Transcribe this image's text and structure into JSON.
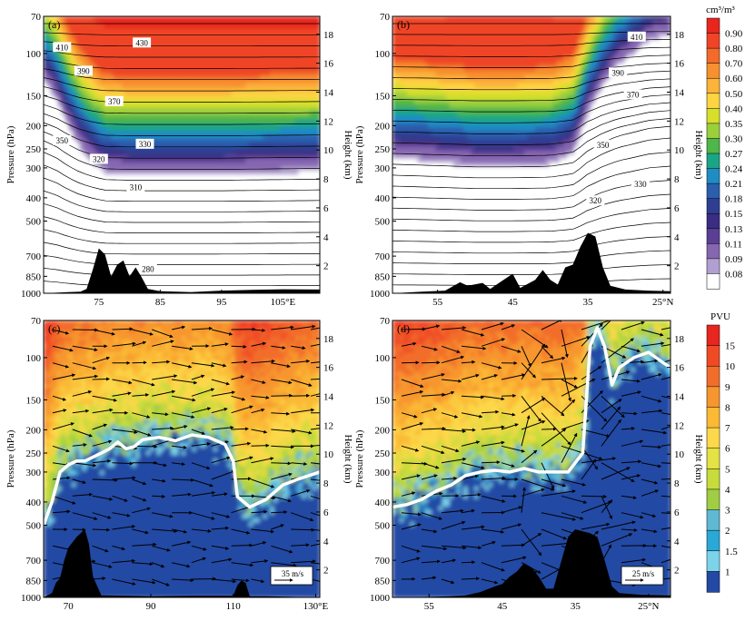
{
  "chart_data": [
    {
      "panel": "(a)",
      "type": "heatmap",
      "variable": "ozone (filled) with isentropes (contours)",
      "x": {
        "ticks": [
          75,
          85,
          95,
          105
        ],
        "labels": [
          "75",
          "85",
          "95",
          "105°E"
        ],
        "range": [
          66,
          111
        ]
      },
      "y": {
        "label": "Pressure (hPa)",
        "scale": "log",
        "ticks": [
          70,
          100,
          150,
          200,
          250,
          300,
          400,
          500,
          700,
          850,
          1000
        ],
        "range": [
          1000,
          70
        ]
      },
      "y2": {
        "label": "Height (km)",
        "ticks": [
          2,
          4,
          6,
          8,
          10,
          12,
          14,
          16,
          18
        ]
      },
      "contour_labels": [
        {
          "v": "430",
          "x": 82,
          "p": 90
        },
        {
          "v": "410",
          "x": 69,
          "p": 94
        },
        {
          "v": "390",
          "x": 72.5,
          "p": 118
        },
        {
          "v": "370",
          "x": 77.5,
          "p": 158
        },
        {
          "v": "350",
          "x": 69,
          "p": 230
        },
        {
          "v": "330",
          "x": 82.5,
          "p": 238
        },
        {
          "v": "320",
          "x": 75,
          "p": 275
        },
        {
          "v": "310",
          "x": 81,
          "p": 360
        },
        {
          "v": "280",
          "x": 83,
          "p": 790
        }
      ],
      "terrain": [
        [
          66,
          1000
        ],
        [
          68,
          995
        ],
        [
          70,
          990
        ],
        [
          72,
          985
        ],
        [
          73,
          960
        ],
        [
          74,
          800
        ],
        [
          75,
          650
        ],
        [
          76,
          690
        ],
        [
          77,
          850
        ],
        [
          78,
          760
        ],
        [
          79,
          730
        ],
        [
          80,
          850
        ],
        [
          81,
          780
        ],
        [
          82,
          860
        ],
        [
          83,
          960
        ],
        [
          85,
          980
        ],
        [
          90,
          990
        ],
        [
          95,
          975
        ],
        [
          100,
          968
        ],
        [
          105,
          962
        ],
        [
          111,
          965
        ]
      ],
      "tropopause_p": [
        [
          66,
          110
        ],
        [
          68,
          130
        ],
        [
          70,
          170
        ],
        [
          72,
          210
        ],
        [
          74,
          240
        ],
        [
          76,
          265
        ],
        [
          80,
          270
        ],
        [
          85,
          270
        ],
        [
          95,
          270
        ],
        [
          105,
          265
        ],
        [
          111,
          262
        ]
      ]
    },
    {
      "panel": "(b)",
      "type": "heatmap",
      "variable": "ozone (filled) with isentropes (contours)",
      "x": {
        "ticks": [
          55,
          45,
          35,
          25
        ],
        "labels": [
          "55",
          "45",
          "35",
          "25°N"
        ],
        "range": [
          61,
          24
        ]
      },
      "y": {
        "label": "Pressure (hPa)",
        "scale": "log",
        "ticks": [
          70,
          100,
          150,
          200,
          250,
          300,
          400,
          500,
          700,
          850,
          1000
        ],
        "range": [
          1000,
          70
        ]
      },
      "y2": {
        "label": "Height (km)",
        "ticks": [
          2,
          4,
          6,
          8,
          10,
          12,
          14,
          16,
          18
        ]
      },
      "contour_labels": [
        {
          "v": "410",
          "x": 28.5,
          "p": 85
        },
        {
          "v": "390",
          "x": 31,
          "p": 120
        },
        {
          "v": "370",
          "x": 29,
          "p": 148
        },
        {
          "v": "350",
          "x": 33,
          "p": 240
        },
        {
          "v": "330",
          "x": 28,
          "p": 350
        },
        {
          "v": "320",
          "x": 34,
          "p": 410
        }
      ],
      "terrain": [
        [
          61,
          1000
        ],
        [
          57,
          985
        ],
        [
          54,
          975
        ],
        [
          52,
          900
        ],
        [
          51,
          930
        ],
        [
          49,
          905
        ],
        [
          48,
          960
        ],
        [
          46,
          870
        ],
        [
          45,
          830
        ],
        [
          44,
          950
        ],
        [
          42,
          880
        ],
        [
          41,
          800
        ],
        [
          40,
          880
        ],
        [
          39,
          920
        ],
        [
          38,
          780
        ],
        [
          37,
          760
        ],
        [
          36,
          640
        ],
        [
          35,
          560
        ],
        [
          34,
          580
        ],
        [
          33,
          780
        ],
        [
          32,
          930
        ],
        [
          30,
          965
        ],
        [
          27,
          975
        ],
        [
          24,
          980
        ]
      ],
      "tropopause_p": [
        [
          61,
          230
        ],
        [
          55,
          240
        ],
        [
          50,
          250
        ],
        [
          45,
          250
        ],
        [
          40,
          245
        ],
        [
          37,
          220
        ],
        [
          35,
          150
        ],
        [
          33,
          115
        ],
        [
          31,
          95
        ],
        [
          29,
          85
        ],
        [
          27,
          75
        ],
        [
          24,
          70
        ]
      ]
    },
    {
      "panel": "(c)",
      "type": "heatmap",
      "variable": "potential vorticity (filled) with wind vectors",
      "x": {
        "ticks": [
          70,
          90,
          110,
          130
        ],
        "labels": [
          "70",
          "90",
          "110",
          "130°E"
        ],
        "range": [
          64,
          131
        ]
      },
      "y": {
        "label": "Pressure (hPa)",
        "scale": "log",
        "ticks": [
          70,
          100,
          150,
          200,
          250,
          300,
          400,
          500,
          700,
          850,
          1000
        ],
        "range": [
          1000,
          70
        ]
      },
      "y2": {
        "label": "Height (km)",
        "ticks": [
          2,
          4,
          6,
          8,
          10,
          12,
          14,
          16,
          18
        ]
      },
      "vector_scale": "35 m/s",
      "terrain": [
        [
          64,
          1000
        ],
        [
          66,
          960
        ],
        [
          67,
          870
        ],
        [
          68,
          830
        ],
        [
          69,
          700
        ],
        [
          70,
          620
        ],
        [
          72,
          560
        ],
        [
          74,
          520
        ],
        [
          75,
          600
        ],
        [
          76,
          820
        ],
        [
          78,
          980
        ],
        [
          90,
          990
        ],
        [
          100,
          985
        ],
        [
          110,
          985
        ],
        [
          111,
          890
        ],
        [
          112,
          850
        ],
        [
          113,
          870
        ],
        [
          114,
          990
        ],
        [
          118,
          990
        ],
        [
          131,
          1000
        ]
      ],
      "tropopause_p": [
        [
          64,
          500
        ],
        [
          66,
          400
        ],
        [
          68,
          300
        ],
        [
          70,
          280
        ],
        [
          72,
          270
        ],
        [
          74,
          270
        ],
        [
          78,
          250
        ],
        [
          80,
          240
        ],
        [
          82,
          225
        ],
        [
          84,
          240
        ],
        [
          86,
          235
        ],
        [
          88,
          220
        ],
        [
          92,
          215
        ],
        [
          96,
          222
        ],
        [
          100,
          210
        ],
        [
          104,
          215
        ],
        [
          108,
          230
        ],
        [
          110,
          270
        ],
        [
          111,
          380
        ],
        [
          114,
          420
        ],
        [
          118,
          390
        ],
        [
          122,
          340
        ],
        [
          126,
          320
        ],
        [
          131,
          300
        ]
      ]
    },
    {
      "panel": "(d)",
      "type": "heatmap",
      "variable": "potential vorticity (filled) with wind vectors",
      "x": {
        "ticks": [
          55,
          45,
          35,
          25
        ],
        "labels": [
          "55",
          "45",
          "35",
          "25°N"
        ],
        "range": [
          60,
          22
        ]
      },
      "y": {
        "label": "Pressure (hPa)",
        "scale": "log",
        "ticks": [
          70,
          100,
          150,
          200,
          250,
          300,
          400,
          500,
          700,
          850,
          1000
        ],
        "range": [
          1000,
          70
        ]
      },
      "y2": {
        "label": "Height (km)",
        "ticks": [
          2,
          4,
          6,
          8,
          10,
          12,
          14,
          16,
          18
        ]
      },
      "vector_scale": "25 m/s",
      "terrain": [
        [
          60,
          1000
        ],
        [
          55,
          995
        ],
        [
          52,
          990
        ],
        [
          50,
          980
        ],
        [
          48,
          950
        ],
        [
          46,
          900
        ],
        [
          45,
          880
        ],
        [
          44,
          820
        ],
        [
          43,
          780
        ],
        [
          42,
          720
        ],
        [
          41,
          750
        ],
        [
          40,
          820
        ],
        [
          39,
          920
        ],
        [
          38,
          920
        ],
        [
          37,
          720
        ],
        [
          36,
          560
        ],
        [
          35,
          520
        ],
        [
          34,
          530
        ],
        [
          33,
          540
        ],
        [
          32,
          560
        ],
        [
          31,
          700
        ],
        [
          30,
          900
        ],
        [
          29,
          960
        ],
        [
          26,
          975
        ],
        [
          22,
          980
        ]
      ],
      "tropopause_p": [
        [
          60,
          420
        ],
        [
          58,
          410
        ],
        [
          56,
          390
        ],
        [
          54,
          360
        ],
        [
          52,
          340
        ],
        [
          50,
          310
        ],
        [
          48,
          300
        ],
        [
          46,
          295
        ],
        [
          44,
          300
        ],
        [
          42,
          290
        ],
        [
          40,
          300
        ],
        [
          38,
          300
        ],
        [
          36,
          300
        ],
        [
          34,
          250
        ],
        [
          33,
          90
        ],
        [
          32,
          75
        ],
        [
          31,
          90
        ],
        [
          30,
          130
        ],
        [
          29,
          110
        ],
        [
          27,
          100
        ],
        [
          25,
          95
        ],
        [
          23,
          105
        ],
        [
          22,
          110
        ]
      ]
    }
  ],
  "colorbars": {
    "ozone": {
      "unit": "cm³/m³",
      "levels": [
        "0.90",
        "0.80",
        "0.70",
        "0.60",
        "0.50",
        "0.40",
        "0.35",
        "0.30",
        "0.27",
        "0.24",
        "0.21",
        "0.18",
        "0.15",
        "0.13",
        "0.11",
        "0.09",
        "0.08"
      ],
      "colors": [
        "#e8261e",
        "#ef4426",
        "#f36a2a",
        "#f7902f",
        "#fbb33a",
        "#fdd442",
        "#d7df2a",
        "#9ccf3c",
        "#4fb649",
        "#1aa686",
        "#1f8cc4",
        "#2b5fae",
        "#2e3f93",
        "#3b2d82",
        "#5a3f95",
        "#8666b1",
        "#b09fd0",
        "#ffffff"
      ]
    },
    "pv": {
      "unit": "PVU",
      "levels": [
        "15",
        "10",
        "9",
        "8",
        "7",
        "6",
        "5",
        "4",
        "3",
        "2",
        "1.5",
        "1"
      ],
      "colors": [
        "#e8251e",
        "#f04a25",
        "#f26d2b",
        "#f7962e",
        "#fbb934",
        "#fcd84a",
        "#e4e244",
        "#c7dc3b",
        "#9fcd44",
        "#5fb9d2",
        "#2aa8d8",
        "#7bd4ea",
        "#2449a4"
      ]
    }
  }
}
